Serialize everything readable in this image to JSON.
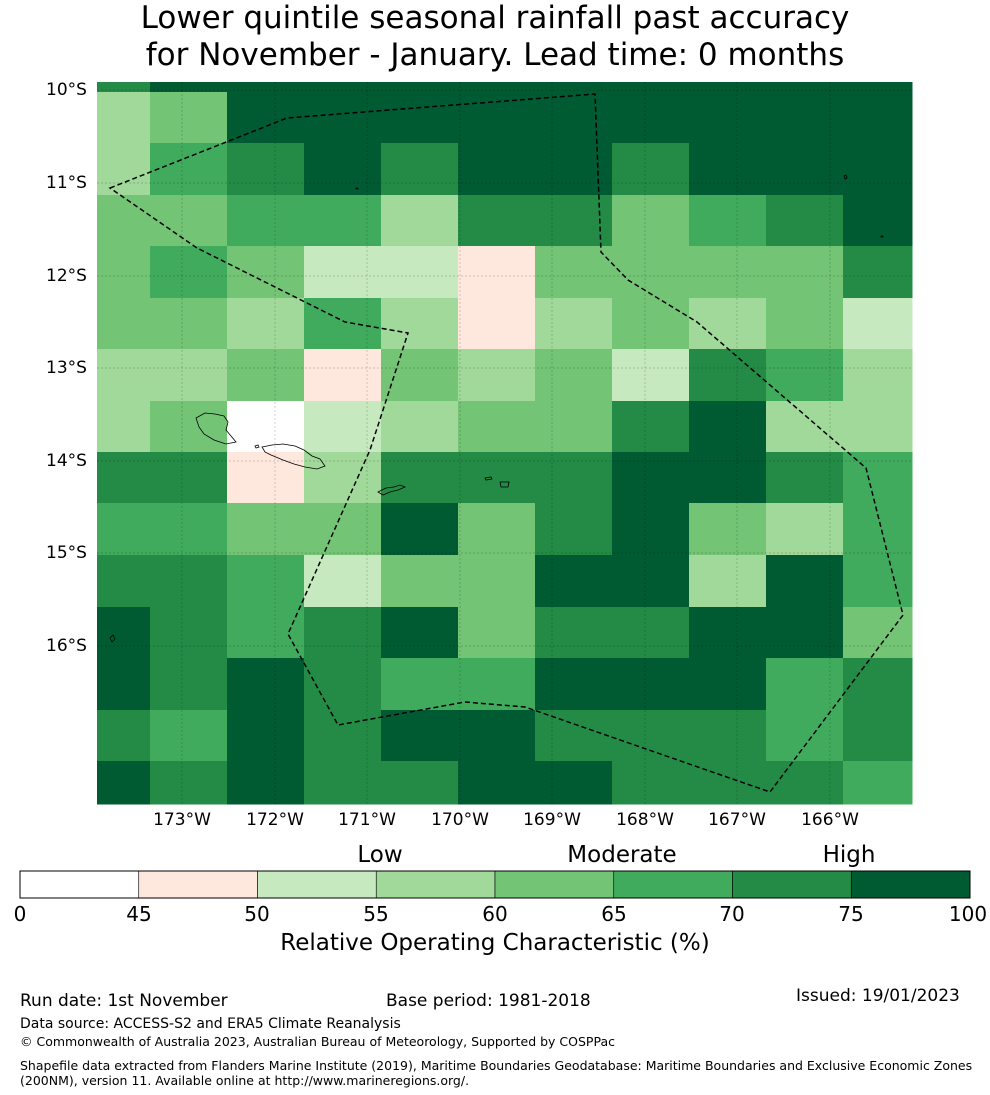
{
  "title": {
    "line1": "Lower quintile seasonal rainfall past accuracy",
    "line2": "for November - January. Lead time: 0 months"
  },
  "map": {
    "lat_labels": [
      "10°S",
      "11°S",
      "12°S",
      "13°S",
      "14°S",
      "15°S",
      "16°S"
    ],
    "lon_labels": [
      "173°W",
      "172°W",
      "171°W",
      "170°W",
      "169°W",
      "168°W",
      "167°W",
      "166°W"
    ],
    "value_grid_note": "ROC score (%) per grid cell, rows north to south, columns west to east",
    "grid": [
      [
        72,
        80,
        80,
        80,
        80,
        80,
        80,
        80,
        80,
        80,
        80
      ],
      [
        57,
        62,
        80,
        80,
        80,
        80,
        80,
        80,
        80,
        80,
        80
      ],
      [
        57,
        67,
        72,
        80,
        72,
        80,
        80,
        72,
        80,
        80,
        80
      ],
      [
        62,
        62,
        67,
        67,
        57,
        72,
        72,
        62,
        67,
        72,
        80
      ],
      [
        62,
        67,
        62,
        53,
        53,
        47,
        62,
        62,
        62,
        62,
        72
      ],
      [
        62,
        62,
        57,
        67,
        57,
        47,
        57,
        62,
        57,
        62,
        53
      ],
      [
        57,
        57,
        62,
        47,
        62,
        57,
        62,
        53,
        72,
        67,
        57
      ],
      [
        57,
        62,
        20,
        53,
        57,
        62,
        62,
        72,
        80,
        57,
        57
      ],
      [
        72,
        72,
        47,
        57,
        72,
        72,
        72,
        80,
        80,
        72,
        67
      ],
      [
        67,
        67,
        62,
        62,
        80,
        62,
        72,
        80,
        62,
        57,
        67
      ],
      [
        72,
        72,
        67,
        53,
        62,
        62,
        80,
        80,
        57,
        80,
        67
      ],
      [
        80,
        72,
        67,
        72,
        80,
        62,
        72,
        72,
        80,
        80,
        62
      ],
      [
        80,
        72,
        80,
        72,
        67,
        67,
        80,
        80,
        80,
        67,
        72
      ],
      [
        72,
        67,
        80,
        72,
        80,
        80,
        72,
        72,
        72,
        67,
        72
      ],
      [
        80,
        72,
        80,
        72,
        72,
        80,
        80,
        72,
        72,
        72,
        67
      ]
    ]
  },
  "colorbar": {
    "ticks": [
      "0",
      "45",
      "50",
      "55",
      "60",
      "65",
      "70",
      "75",
      "100"
    ],
    "colors": [
      "#ffffff",
      "#fee8dd",
      "#c7e9c0",
      "#a1d99b",
      "#74c476",
      "#41ab5d",
      "#238b45",
      "#005a32"
    ],
    "category_low": "Low",
    "category_moderate": "Moderate",
    "category_high": "High",
    "label": "Relative Operating Characteristic (%)"
  },
  "footer": {
    "run_date": "Run date: 1st November",
    "base_period": "Base period: 1981-2018",
    "issued": "Issued: 19/01/2023",
    "data_source": "Data source: ACCESS-S2 and ERA5 Climate Reanalysis",
    "copyright": "© Commonwealth of Australia 2023, Australian Bureau of Meteorology, Supported by COSPPac",
    "shapefile_line1": "Shapefile data extracted from Flanders Marine Institute (2019), Maritime Boundaries Geodatabase: Maritime Boundaries and Exclusive Economic Zones",
    "shapefile_line2": "(200NM), version 11. Available online at http://www.marineregions.org/."
  }
}
